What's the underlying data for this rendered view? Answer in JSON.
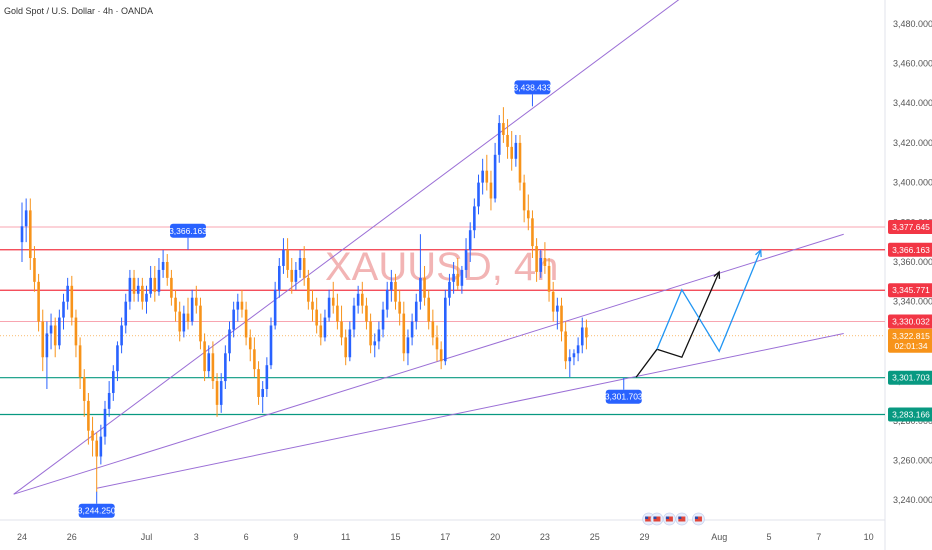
{
  "header": {
    "title": "Gold Spot / U.S. Dollar · 4h · OANDA"
  },
  "watermark": "XAUUSD, 4h",
  "colors": {
    "up": "#2962ff",
    "down": "#f7931a",
    "red_line": "#f23645",
    "pink_line": "#f8a5b0",
    "green_line": "#089981",
    "channel": "#9b6fd6",
    "path_black": "#111111",
    "path_blue": "#2196f3",
    "price_badge": "#f7931a"
  },
  "chart_data": {
    "type": "candlestick",
    "ylim": [
      3230,
      3492
    ],
    "yticks": [
      {
        "v": 3240,
        "label": "3,240.000"
      },
      {
        "v": 3260,
        "label": "3,260.000"
      },
      {
        "v": 3280,
        "label": "3,280.000"
      },
      {
        "v": 3300,
        "label": "3,300.000"
      },
      {
        "v": 3320,
        "label": "3,320.000"
      },
      {
        "v": 3340,
        "label": "3,340.000"
      },
      {
        "v": 3360,
        "label": "3,360.000"
      },
      {
        "v": 3380,
        "label": "3,380.000"
      },
      {
        "v": 3400,
        "label": "3,400.000"
      },
      {
        "v": 3420,
        "label": "3,420.000"
      },
      {
        "v": 3440,
        "label": "3,440.000"
      },
      {
        "v": 3460,
        "label": "3,460.000"
      },
      {
        "v": 3480,
        "label": "3,480.000"
      }
    ],
    "xticks": [
      {
        "i": 0,
        "label": "24"
      },
      {
        "i": 12,
        "label": "26"
      },
      {
        "i": 30,
        "label": "Jul"
      },
      {
        "i": 42,
        "label": "3"
      },
      {
        "i": 54,
        "label": "6"
      },
      {
        "i": 66,
        "label": "9"
      },
      {
        "i": 78,
        "label": "11"
      },
      {
        "i": 90,
        "label": "15"
      },
      {
        "i": 102,
        "label": "17"
      },
      {
        "i": 114,
        "label": "20"
      },
      {
        "i": 126,
        "label": "23"
      },
      {
        "i": 138,
        "label": "25"
      },
      {
        "i": 150,
        "label": "29"
      },
      {
        "i": 168,
        "label": "Aug"
      },
      {
        "i": 180,
        "label": "5"
      },
      {
        "i": 192,
        "label": "7"
      },
      {
        "i": 204,
        "label": "10"
      }
    ],
    "candles": [
      [
        3370,
        3390,
        3360,
        3378
      ],
      [
        3378,
        3392,
        3370,
        3386
      ],
      [
        3386,
        3392,
        3356,
        3362
      ],
      [
        3362,
        3368,
        3345,
        3350
      ],
      [
        3350,
        3354,
        3325,
        3330
      ],
      [
        3330,
        3336,
        3305,
        3312
      ],
      [
        3312,
        3330,
        3296,
        3324
      ],
      [
        3324,
        3334,
        3316,
        3328
      ],
      [
        3328,
        3332,
        3312,
        3318
      ],
      [
        3318,
        3336,
        3316,
        3332
      ],
      [
        3332,
        3344,
        3326,
        3340
      ],
      [
        3340,
        3352,
        3336,
        3348
      ],
      [
        3348,
        3353,
        3328,
        3332
      ],
      [
        3332,
        3336,
        3312,
        3318
      ],
      [
        3318,
        3322,
        3296,
        3302
      ],
      [
        3302,
        3306,
        3282,
        3290
      ],
      [
        3290,
        3294,
        3268,
        3275
      ],
      [
        3275,
        3282,
        3262,
        3270
      ],
      [
        3270,
        3274,
        3244,
        3262
      ],
      [
        3262,
        3278,
        3258,
        3272
      ],
      [
        3272,
        3290,
        3268,
        3286
      ],
      [
        3286,
        3300,
        3282,
        3294
      ],
      [
        3294,
        3308,
        3290,
        3305
      ],
      [
        3305,
        3320,
        3300,
        3318
      ],
      [
        3318,
        3332,
        3314,
        3328
      ],
      [
        3328,
        3344,
        3324,
        3340
      ],
      [
        3340,
        3356,
        3336,
        3352
      ],
      [
        3352,
        3356,
        3340,
        3344
      ],
      [
        3344,
        3352,
        3340,
        3348
      ],
      [
        3348,
        3352,
        3336,
        3340
      ],
      [
        3340,
        3348,
        3334,
        3344
      ],
      [
        3344,
        3358,
        3342,
        3352
      ],
      [
        3352,
        3358,
        3340,
        3345
      ],
      [
        3345,
        3362,
        3343,
        3356
      ],
      [
        3356,
        3366,
        3352,
        3360
      ],
      [
        3360,
        3364,
        3348,
        3352
      ],
      [
        3352,
        3356,
        3338,
        3342
      ],
      [
        3342,
        3346,
        3330,
        3335
      ],
      [
        3335,
        3340,
        3320,
        3325
      ],
      [
        3325,
        3338,
        3322,
        3334
      ],
      [
        3334,
        3342,
        3326,
        3330
      ],
      [
        3330,
        3346,
        3328,
        3342
      ],
      [
        3342,
        3348,
        3334,
        3338
      ],
      [
        3338,
        3342,
        3316,
        3320
      ],
      [
        3320,
        3324,
        3300,
        3305
      ],
      [
        3305,
        3318,
        3302,
        3314
      ],
      [
        3314,
        3320,
        3296,
        3300
      ],
      [
        3300,
        3304,
        3282,
        3288
      ],
      [
        3288,
        3304,
        3284,
        3300
      ],
      [
        3300,
        3318,
        3296,
        3314
      ],
      [
        3314,
        3330,
        3310,
        3326
      ],
      [
        3326,
        3340,
        3322,
        3336
      ],
      [
        3336,
        3344,
        3330,
        3340
      ],
      [
        3340,
        3346,
        3332,
        3336
      ],
      [
        3336,
        3340,
        3318,
        3322
      ],
      [
        3322,
        3326,
        3310,
        3316
      ],
      [
        3316,
        3322,
        3302,
        3306
      ],
      [
        3306,
        3310,
        3288,
        3292
      ],
      [
        3292,
        3300,
        3284,
        3296
      ],
      [
        3296,
        3312,
        3292,
        3308
      ],
      [
        3308,
        3332,
        3306,
        3328
      ],
      [
        3328,
        3350,
        3326,
        3346
      ],
      [
        3346,
        3362,
        3342,
        3358
      ],
      [
        3358,
        3372,
        3354,
        3366
      ],
      [
        3366,
        3372,
        3352,
        3356
      ],
      [
        3356,
        3362,
        3344,
        3350
      ],
      [
        3350,
        3360,
        3346,
        3356
      ],
      [
        3356,
        3366,
        3352,
        3362
      ],
      [
        3362,
        3368,
        3348,
        3352
      ],
      [
        3352,
        3356,
        3336,
        3340
      ],
      [
        3340,
        3346,
        3330,
        3336
      ],
      [
        3336,
        3342,
        3324,
        3328
      ],
      [
        3328,
        3334,
        3318,
        3322
      ],
      [
        3322,
        3336,
        3320,
        3332
      ],
      [
        3332,
        3346,
        3330,
        3342
      ],
      [
        3342,
        3350,
        3334,
        3338
      ],
      [
        3338,
        3344,
        3326,
        3330
      ],
      [
        3330,
        3338,
        3318,
        3322
      ],
      [
        3322,
        3326,
        3308,
        3312
      ],
      [
        3312,
        3330,
        3310,
        3326
      ],
      [
        3326,
        3342,
        3322,
        3338
      ],
      [
        3338,
        3348,
        3334,
        3344
      ],
      [
        3344,
        3350,
        3334,
        3338
      ],
      [
        3338,
        3342,
        3326,
        3330
      ],
      [
        3330,
        3334,
        3314,
        3318
      ],
      [
        3318,
        3324,
        3312,
        3320
      ],
      [
        3320,
        3330,
        3316,
        3326
      ],
      [
        3326,
        3340,
        3322,
        3336
      ],
      [
        3336,
        3350,
        3332,
        3346
      ],
      [
        3346,
        3356,
        3340,
        3350
      ],
      [
        3350,
        3354,
        3336,
        3340
      ],
      [
        3340,
        3346,
        3328,
        3334
      ],
      [
        3334,
        3340,
        3310,
        3314
      ],
      [
        3314,
        3326,
        3308,
        3322
      ],
      [
        3322,
        3334,
        3318,
        3330
      ],
      [
        3330,
        3344,
        3326,
        3340
      ],
      [
        3340,
        3374,
        3336,
        3352
      ],
      [
        3352,
        3358,
        3338,
        3342
      ],
      [
        3342,
        3346,
        3326,
        3330
      ],
      [
        3330,
        3336,
        3318,
        3322
      ],
      [
        3322,
        3328,
        3310,
        3316
      ],
      [
        3316,
        3320,
        3306,
        3310
      ],
      [
        3310,
        3346,
        3308,
        3342
      ],
      [
        3342,
        3354,
        3338,
        3350
      ],
      [
        3350,
        3360,
        3344,
        3354
      ],
      [
        3354,
        3362,
        3346,
        3348
      ],
      [
        3348,
        3358,
        3344,
        3356
      ],
      [
        3356,
        3372,
        3352,
        3366
      ],
      [
        3366,
        3380,
        3360,
        3376
      ],
      [
        3376,
        3392,
        3372,
        3388
      ],
      [
        3388,
        3404,
        3384,
        3400
      ],
      [
        3400,
        3412,
        3394,
        3406
      ],
      [
        3406,
        3414,
        3396,
        3400
      ],
      [
        3400,
        3406,
        3386,
        3392
      ],
      [
        3392,
        3420,
        3390,
        3414
      ],
      [
        3414,
        3434,
        3410,
        3430
      ],
      [
        3430,
        3438,
        3420,
        3424
      ],
      [
        3424,
        3432,
        3412,
        3418
      ],
      [
        3418,
        3426,
        3406,
        3412
      ],
      [
        3412,
        3424,
        3408,
        3420
      ],
      [
        3420,
        3424,
        3396,
        3400
      ],
      [
        3400,
        3404,
        3380,
        3386
      ],
      [
        3386,
        3394,
        3376,
        3382
      ],
      [
        3382,
        3386,
        3362,
        3368
      ],
      [
        3368,
        3372,
        3350,
        3355
      ],
      [
        3355,
        3366,
        3352,
        3362
      ],
      [
        3362,
        3370,
        3354,
        3358
      ],
      [
        3358,
        3362,
        3340,
        3345
      ],
      [
        3345,
        3350,
        3330,
        3335
      ],
      [
        3335,
        3342,
        3326,
        3338
      ],
      [
        3338,
        3342,
        3320,
        3325
      ],
      [
        3325,
        3330,
        3306,
        3310
      ],
      [
        3310,
        3316,
        3302,
        3312
      ],
      [
        3312,
        3316,
        3308,
        3314
      ],
      [
        3314,
        3322,
        3310,
        3318
      ],
      [
        3318,
        3332,
        3314,
        3327
      ],
      [
        3327,
        3331,
        3316,
        3322
      ]
    ],
    "levels": [
      {
        "v": 3377.645,
        "label": "3,377.645",
        "style": "pink"
      },
      {
        "v": 3366.163,
        "label": "3,366.163",
        "style": "red"
      },
      {
        "v": 3345.771,
        "label": "3,345.771",
        "style": "red"
      },
      {
        "v": 3330.032,
        "label": "3,330.032",
        "style": "pink"
      },
      {
        "v": 3301.703,
        "label": "3,301.703",
        "style": "green"
      },
      {
        "v": 3283.166,
        "label": "3,283.166",
        "style": "green"
      }
    ],
    "current_price": {
      "v": 3322.815,
      "label": "3,322.815",
      "countdown": "02:01:34"
    },
    "callouts": [
      {
        "i": 18,
        "v": 3244.25,
        "label": "3,244.250",
        "pos": "below"
      },
      {
        "i": 40,
        "v": 3366.163,
        "label": "3,366.163",
        "pos": "above"
      },
      {
        "i": 123,
        "v": 3438.433,
        "label": "3,438.433",
        "pos": "above"
      },
      {
        "i": 145,
        "v": 3301.703,
        "label": "3,301.703",
        "pos": "below"
      }
    ],
    "channel_lines": [
      {
        "i1": -2,
        "v1": 3243,
        "i2": 126,
        "v2": 3442,
        "extend_to": 180
      },
      {
        "i1": -2,
        "v1": 3243,
        "i2": 140,
        "v2": 3336,
        "extend_to": 198
      },
      {
        "i1": 18,
        "v1": 3246,
        "i2": 145,
        "v2": 3301,
        "extend_to": 198
      }
    ],
    "projections": [
      {
        "color": "black",
        "points": [
          [
            148,
            3302
          ],
          [
            153,
            3316
          ],
          [
            159,
            3312
          ],
          [
            168,
            3355
          ]
        ]
      },
      {
        "color": "blue",
        "points": [
          [
            153,
            3316
          ],
          [
            159,
            3346
          ],
          [
            168,
            3315
          ],
          [
            178,
            3366
          ]
        ]
      }
    ],
    "event_icons": [
      151,
      153,
      156,
      159,
      163
    ]
  }
}
